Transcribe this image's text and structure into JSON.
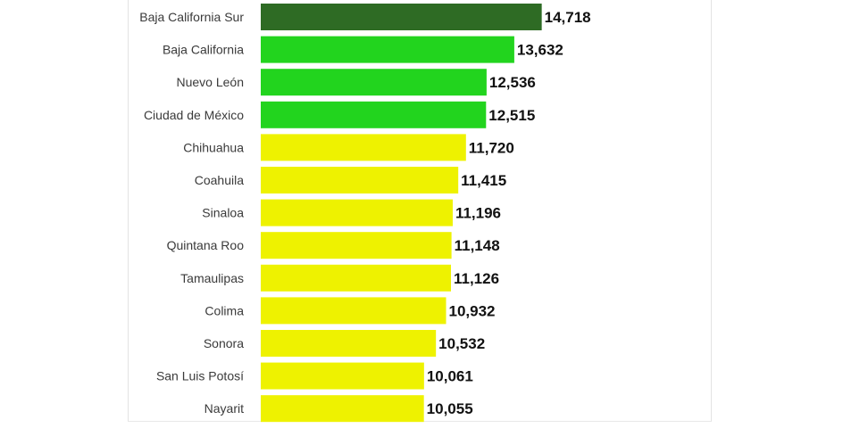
{
  "chart_data": {
    "type": "bar",
    "orientation": "horizontal",
    "categories": [
      "Baja California Sur",
      "Baja California",
      "Nuevo León",
      "Ciudad de México",
      "Chihuahua",
      "Coahuila",
      "Sinaloa",
      "Quintana Roo",
      "Tamaulipas",
      "Colima",
      "Sonora",
      "San Luis Potosí",
      "Nayarit"
    ],
    "values": [
      14718,
      13632,
      12536,
      12515,
      11720,
      11415,
      11196,
      11148,
      11126,
      10932,
      10532,
      10061,
      10055
    ],
    "value_labels": [
      "14,718",
      "13,632",
      "12,536",
      "12,515",
      "11,720",
      "11,415",
      "11,196",
      "11,148",
      "11,126",
      "10,932",
      "10,532",
      "10,061",
      "10,055"
    ],
    "bar_colors": [
      "#2e6b24",
      "#22d41e",
      "#22d41e",
      "#22d41e",
      "#eef200",
      "#eef200",
      "#eef200",
      "#eef200",
      "#eef200",
      "#eef200",
      "#eef200",
      "#eef200",
      "#eef200"
    ],
    "title": "",
    "xlabel": "",
    "ylabel": "",
    "grid": false,
    "legend": false
  }
}
